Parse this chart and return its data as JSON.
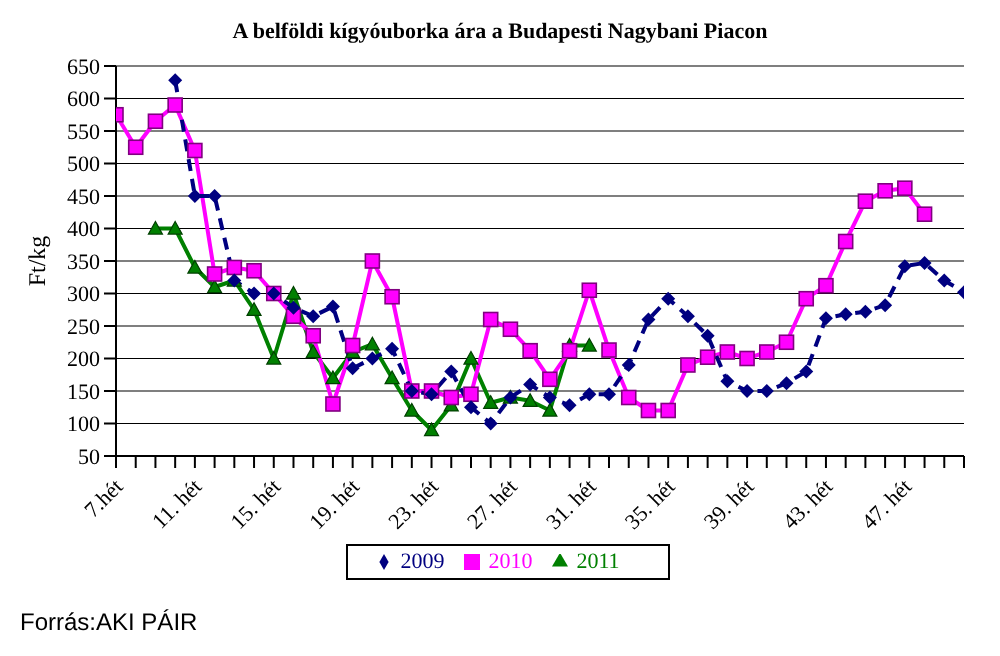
{
  "chart_data": {
    "type": "line",
    "title": "A belföldi kígyóuborka ára a Budapesti Nagybani Piacon",
    "ylabel": "Ft/kg",
    "categories": [
      "7.hét",
      null,
      null,
      null,
      "11. hét",
      null,
      null,
      null,
      "15. hét",
      null,
      null,
      null,
      "19. hét",
      null,
      null,
      null,
      "23. hét",
      null,
      null,
      null,
      "27. hét",
      null,
      null,
      null,
      "31. hét",
      null,
      null,
      null,
      "35. hét",
      null,
      null,
      null,
      "39. hét",
      null,
      null,
      null,
      "43. hét",
      null,
      null,
      null,
      "47. hét",
      null,
      null,
      null
    ],
    "series": [
      {
        "name": "2009",
        "color": "#000080",
        "marker": "diamond",
        "line_style": "dashed",
        "values": [
          null,
          null,
          null,
          628,
          450,
          450,
          320,
          300,
          300,
          278,
          265,
          280,
          185,
          200,
          215,
          150,
          145,
          180,
          125,
          100,
          140,
          160,
          140,
          128,
          145,
          145,
          190,
          260,
          292,
          265,
          235,
          165,
          150,
          150,
          162,
          180,
          262,
          268,
          272,
          282,
          342,
          347,
          320,
          302
        ]
      },
      {
        "name": "2010",
        "color": "#ff00ff",
        "marker": "square",
        "line_style": "solid",
        "values": [
          575,
          525,
          565,
          590,
          520,
          330,
          340,
          335,
          300,
          265,
          235,
          130,
          220,
          350,
          295,
          150,
          150,
          140,
          145,
          260,
          245,
          212,
          168,
          212,
          305,
          213,
          140,
          120,
          120,
          190,
          202,
          210,
          200,
          210,
          225,
          292,
          312,
          380,
          442,
          458,
          462,
          422,
          null,
          null
        ]
      },
      {
        "name": "2011",
        "color": "#008000",
        "marker": "triangle",
        "line_style": "solid",
        "values": [
          null,
          null,
          400,
          400,
          340,
          310,
          320,
          275,
          200,
          300,
          210,
          170,
          210,
          222,
          170,
          120,
          90,
          128,
          200,
          132,
          140,
          135,
          120,
          220,
          220,
          null,
          null,
          null,
          null,
          null,
          null,
          null,
          null,
          null,
          null,
          null,
          null,
          null,
          null,
          null,
          null,
          null,
          null,
          null
        ]
      }
    ],
    "ylim": [
      50,
      650
    ],
    "yticks": [
      50,
      100,
      150,
      200,
      250,
      300,
      350,
      400,
      450,
      500,
      550,
      600,
      650
    ],
    "grid": "y",
    "legend": "bottom",
    "annotations": [
      "Forrás:AKI PÁIR"
    ]
  }
}
